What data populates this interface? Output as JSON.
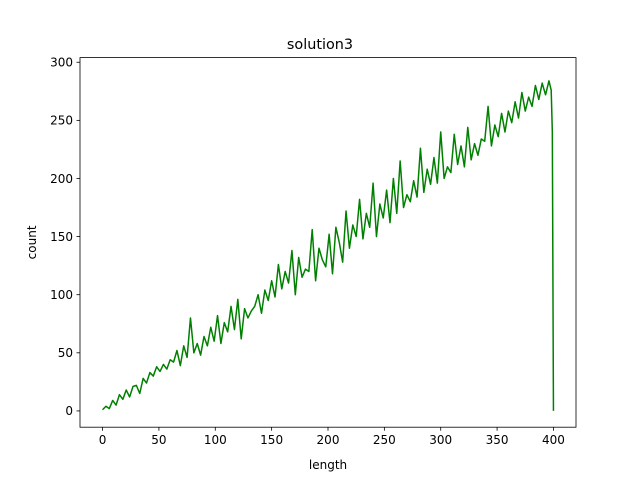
{
  "chart_data": {
    "type": "line",
    "title": "solution3",
    "xlabel": "length",
    "ylabel": "count",
    "xlim": [
      -20,
      420
    ],
    "ylim": [
      -14,
      304
    ],
    "xticks": [
      0,
      50,
      100,
      150,
      200,
      250,
      300,
      350,
      400
    ],
    "yticks": [
      0,
      50,
      100,
      150,
      200,
      250,
      300
    ],
    "grid": false,
    "legend": "none",
    "series": [
      {
        "color": "#008000",
        "x": [
          0,
          3,
          6,
          9,
          12,
          15,
          18,
          21,
          24,
          27,
          30,
          33,
          36,
          39,
          42,
          45,
          48,
          51,
          54,
          57,
          60,
          63,
          66,
          69,
          72,
          75,
          78,
          81,
          84,
          87,
          90,
          93,
          96,
          99,
          102,
          105,
          108,
          111,
          114,
          117,
          120,
          123,
          126,
          129,
          132,
          135,
          138,
          141,
          144,
          147,
          150,
          153,
          156,
          159,
          162,
          165,
          168,
          171,
          174,
          177,
          180,
          183,
          186,
          189,
          192,
          195,
          198,
          201,
          204,
          207,
          210,
          213,
          216,
          219,
          222,
          225,
          228,
          231,
          234,
          237,
          240,
          243,
          246,
          249,
          252,
          255,
          258,
          261,
          264,
          267,
          270,
          273,
          276,
          279,
          282,
          285,
          288,
          291,
          294,
          297,
          300,
          303,
          306,
          309,
          312,
          315,
          318,
          321,
          324,
          327,
          330,
          333,
          336,
          339,
          342,
          345,
          348,
          351,
          354,
          357,
          360,
          363,
          366,
          369,
          372,
          375,
          378,
          381,
          384,
          387,
          390,
          393,
          396,
          398,
          399,
          400
        ],
        "y": [
          1,
          4,
          2,
          9,
          5,
          14,
          10,
          18,
          12,
          21,
          22,
          15,
          28,
          24,
          33,
          30,
          38,
          34,
          40,
          36,
          44,
          42,
          52,
          39,
          56,
          46,
          80,
          50,
          58,
          48,
          64,
          56,
          72,
          60,
          82,
          58,
          76,
          68,
          90,
          70,
          96,
          62,
          88,
          80,
          86,
          90,
          100,
          84,
          104,
          95,
          112,
          98,
          126,
          105,
          120,
          110,
          138,
          100,
          132,
          115,
          122,
          120,
          156,
          112,
          140,
          130,
          124,
          152,
          118,
          158,
          145,
          128,
          172,
          140,
          160,
          150,
          182,
          148,
          170,
          158,
          196,
          150,
          178,
          166,
          190,
          162,
          200,
          170,
          215,
          175,
          186,
          180,
          198,
          184,
          226,
          188,
          208,
          195,
          218,
          196,
          240,
          200,
          210,
          205,
          238,
          212,
          228,
          210,
          244,
          216,
          230,
          220,
          234,
          232,
          262,
          228,
          246,
          236,
          256,
          240,
          258,
          248,
          266,
          252,
          274,
          258,
          270,
          262,
          280,
          268,
          282,
          272,
          284,
          276,
          240,
          0
        ]
      }
    ]
  }
}
